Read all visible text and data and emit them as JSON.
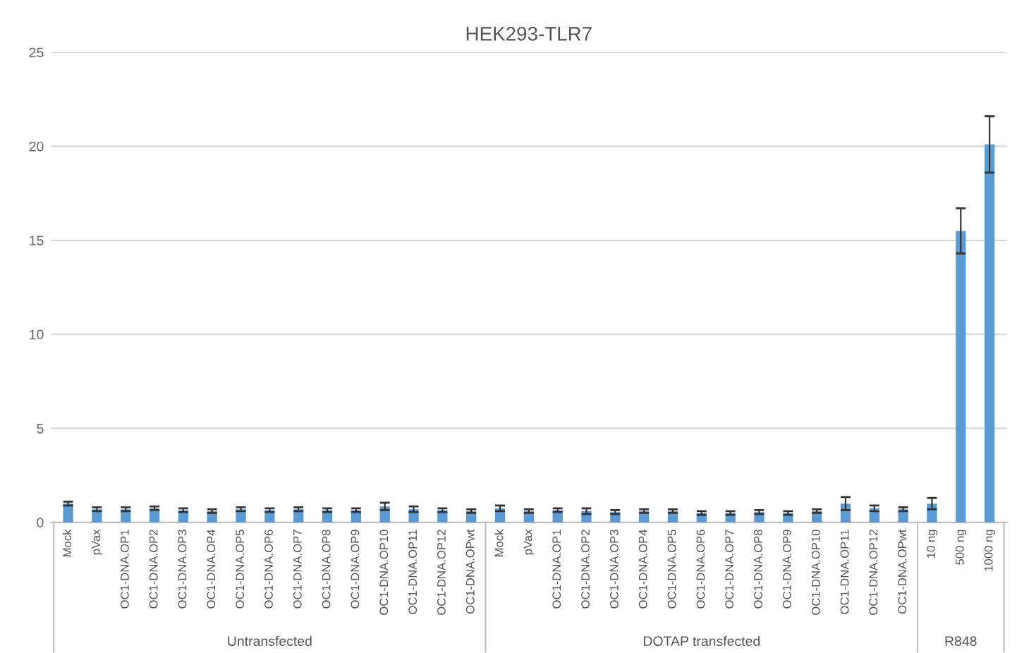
{
  "chart_data": {
    "type": "bar",
    "title": "HEK293-TLR7",
    "categories": [
      "Mock",
      "pVax",
      "OC1-DNA.OP1",
      "OC1-DNA.OP2",
      "OC1-DNA.OP3",
      "OC1-DNA.OP4",
      "OC1-DNA.OP5",
      "OC1-DNA.OP6",
      "OC1-DNA.OP7",
      "OC1-DNA.OP8",
      "OC1-DNA.OP9",
      "OC1-DNA.OP10",
      "OC1-DNA.OP11",
      "OC1-DNA.OP12",
      "OC1-DNA.OPwt",
      "Mock",
      "pVax",
      "OC1-DNA.OP1",
      "OC1-DNA.OP2",
      "OC1-DNA.OP3",
      "OC1-DNA.OP4",
      "OC1-DNA.OP5",
      "OC1-DNA.OP6",
      "OC1-DNA.OP7",
      "OC1-DNA.OP8",
      "OC1-DNA.OP9",
      "OC1-DNA.OP10",
      "OC1-DNA.OP11",
      "OC1-DNA.OP12",
      "OC1-DNA.OPwt",
      "10 ng",
      "500 ng",
      "1000 ng"
    ],
    "values": [
      1.0,
      0.7,
      0.7,
      0.75,
      0.65,
      0.6,
      0.7,
      0.65,
      0.7,
      0.65,
      0.65,
      0.85,
      0.7,
      0.65,
      0.6,
      0.75,
      0.6,
      0.65,
      0.6,
      0.55,
      0.6,
      0.6,
      0.5,
      0.5,
      0.55,
      0.5,
      0.6,
      1.0,
      0.75,
      0.7,
      1.0,
      15.5,
      20.1
    ],
    "errors": [
      0.1,
      0.1,
      0.1,
      0.1,
      0.1,
      0.1,
      0.1,
      0.1,
      0.1,
      0.1,
      0.1,
      0.2,
      0.15,
      0.1,
      0.1,
      0.15,
      0.1,
      0.1,
      0.15,
      0.1,
      0.1,
      0.1,
      0.1,
      0.1,
      0.1,
      0.1,
      0.1,
      0.35,
      0.15,
      0.1,
      0.3,
      1.2,
      1.5
    ],
    "color": "#5b9bd5",
    "ylim": [
      0,
      25
    ],
    "yticks": [
      0,
      5,
      10,
      15,
      20,
      25
    ],
    "grid": "y",
    "annotations": [
      "Untransfected",
      "DOTAP transfected",
      "R848"
    ]
  }
}
